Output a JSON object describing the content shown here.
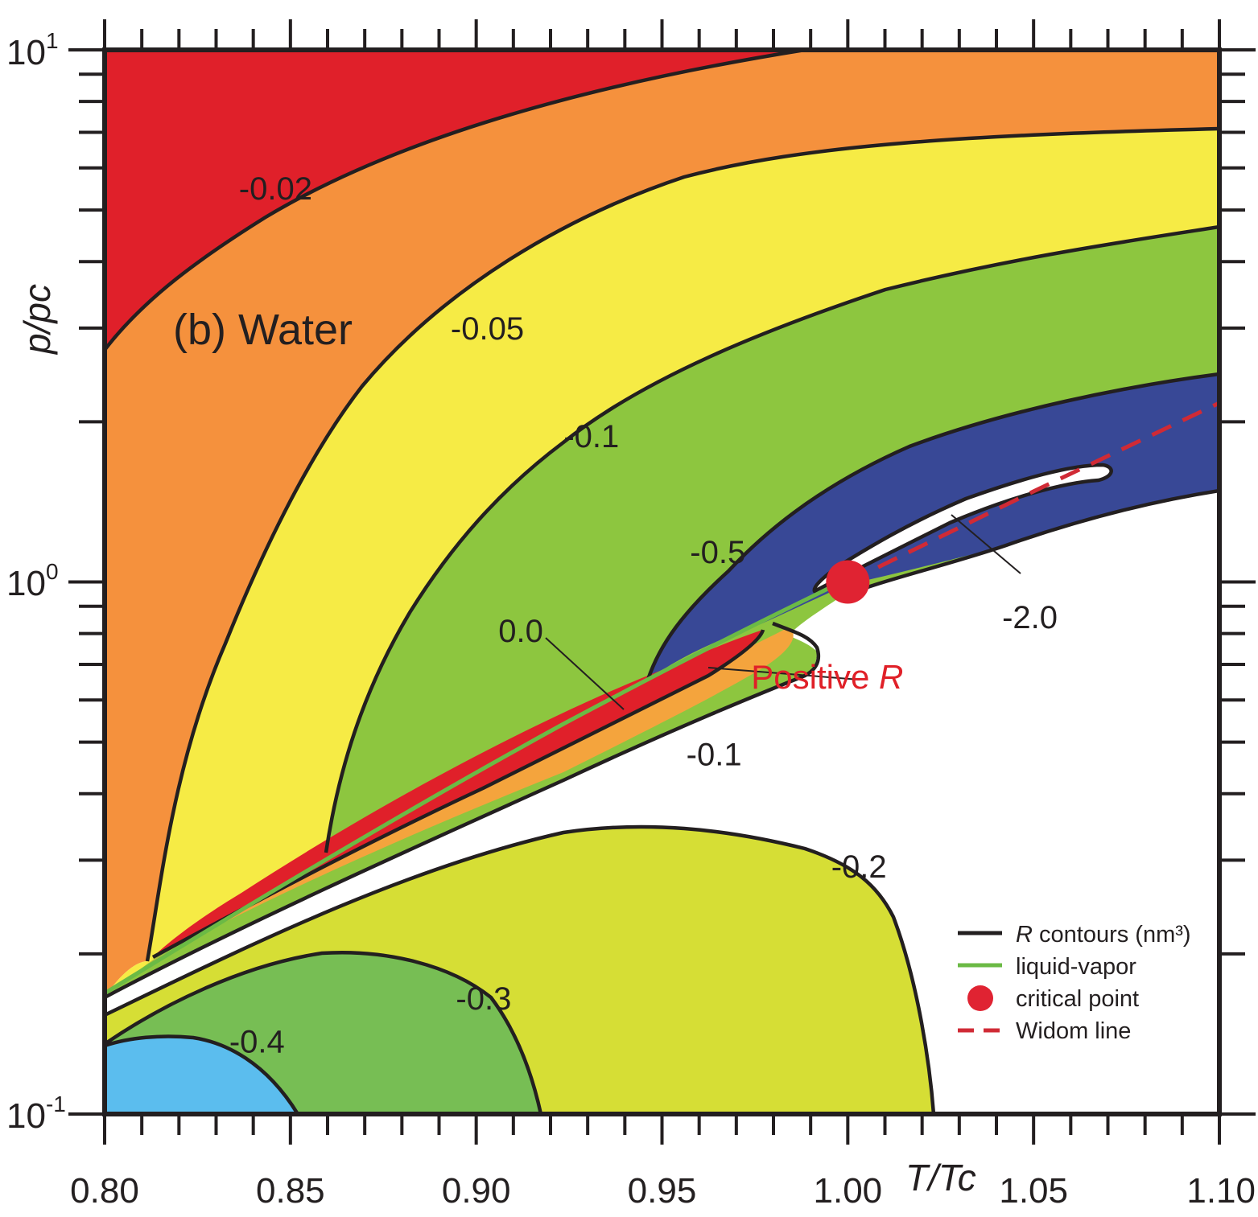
{
  "chart_data": {
    "type": "contour",
    "title": "",
    "panel_label": "(b) Water",
    "xlabel": "T/Tc",
    "ylabel": "p/pc",
    "xlim": [
      0.8,
      1.1
    ],
    "ylim": [
      0.1,
      10
    ],
    "yscale": "log",
    "x_tick_labels": [
      "0.80",
      "0.85",
      "0.90",
      "0.95",
      "1.00",
      "1.05",
      "1.10"
    ],
    "y_tick_labels": [
      {
        "value": 0.1,
        "base": "10",
        "exp": "-1"
      },
      {
        "value": 1,
        "base": "10",
        "exp": "0"
      },
      {
        "value": 10,
        "base": "10",
        "exp": "1"
      }
    ],
    "contour_labels": [
      {
        "text": "-0.02",
        "x": 0.846,
        "y": 5.5,
        "color": "#ffffff"
      },
      {
        "text": "-0.05",
        "x": 0.903,
        "y": 3.0,
        "color": "#231f20"
      },
      {
        "text": "-0.1",
        "x": 0.931,
        "y": 1.88,
        "color": "#231f20"
      },
      {
        "text": "-0.5",
        "x": 0.965,
        "y": 1.14,
        "color": "#231f20"
      },
      {
        "text": "-2.0",
        "x": 1.049,
        "y": 0.86,
        "color": "#231f20"
      },
      {
        "text": "0.0",
        "x": 0.912,
        "y": 0.81,
        "color": "#231f20"
      },
      {
        "text": "-0.1",
        "x": 0.964,
        "y": 0.475,
        "color": "#231f20"
      },
      {
        "text": "-0.2",
        "x": 1.003,
        "y": 0.292,
        "color": "#231f20"
      },
      {
        "text": "-0.3",
        "x": 0.902,
        "y": 0.165,
        "color": "#231f20"
      },
      {
        "text": "-0.4",
        "x": 0.841,
        "y": 0.137,
        "color": "#231f20"
      }
    ],
    "annotation": {
      "text": "Positive ",
      "italic": "R",
      "x": 0.974,
      "y": 0.664,
      "color": "#e02028"
    },
    "critical_point": {
      "x": 1.0,
      "y": 1.0
    },
    "widom_line": {
      "x": [
        1.0,
        1.05,
        1.1
      ],
      "y": [
        1.0,
        1.48,
        2.17
      ]
    },
    "liquid_vapor_line": {
      "x": [
        0.81,
        0.85,
        0.9,
        0.95,
        0.97,
        1.0
      ],
      "y": [
        0.18,
        0.27,
        0.42,
        0.65,
        0.78,
        1.0
      ]
    },
    "series": [
      {
        "name": "-0.02",
        "color": "#e0202a"
      },
      {
        "name": "-0.05",
        "color": "#f5913d"
      },
      {
        "name": "-0.1",
        "color": "#f6eb45"
      },
      {
        "name": "-0.1",
        "color": "#8dc63f"
      },
      {
        "name": "-0.5",
        "color": "#384896"
      },
      {
        "name": "-2.0",
        "color": "#ffffff"
      },
      {
        "name": "0.0",
        "color": "#e0202a"
      },
      {
        "name": "-0.1",
        "color": "#f4a43d"
      },
      {
        "name": "-0.2",
        "color": "#d6de35"
      },
      {
        "name": "-0.3",
        "color": "#77be54"
      },
      {
        "name": "-0.4",
        "color": "#5bbdee"
      }
    ],
    "legend": {
      "position": "bottom-right",
      "entries": [
        {
          "prefix": "R",
          "label": " contours (nm³)",
          "kind": "line",
          "color": "#231f20"
        },
        {
          "prefix": "",
          "label": "liquid-vapor",
          "kind": "line",
          "color": "#6bba45"
        },
        {
          "prefix": "",
          "label": "critical point",
          "kind": "dot",
          "color": "#e02332"
        },
        {
          "prefix": "",
          "label": "Widom line",
          "kind": "dash",
          "color": "#d02a35"
        }
      ]
    }
  }
}
